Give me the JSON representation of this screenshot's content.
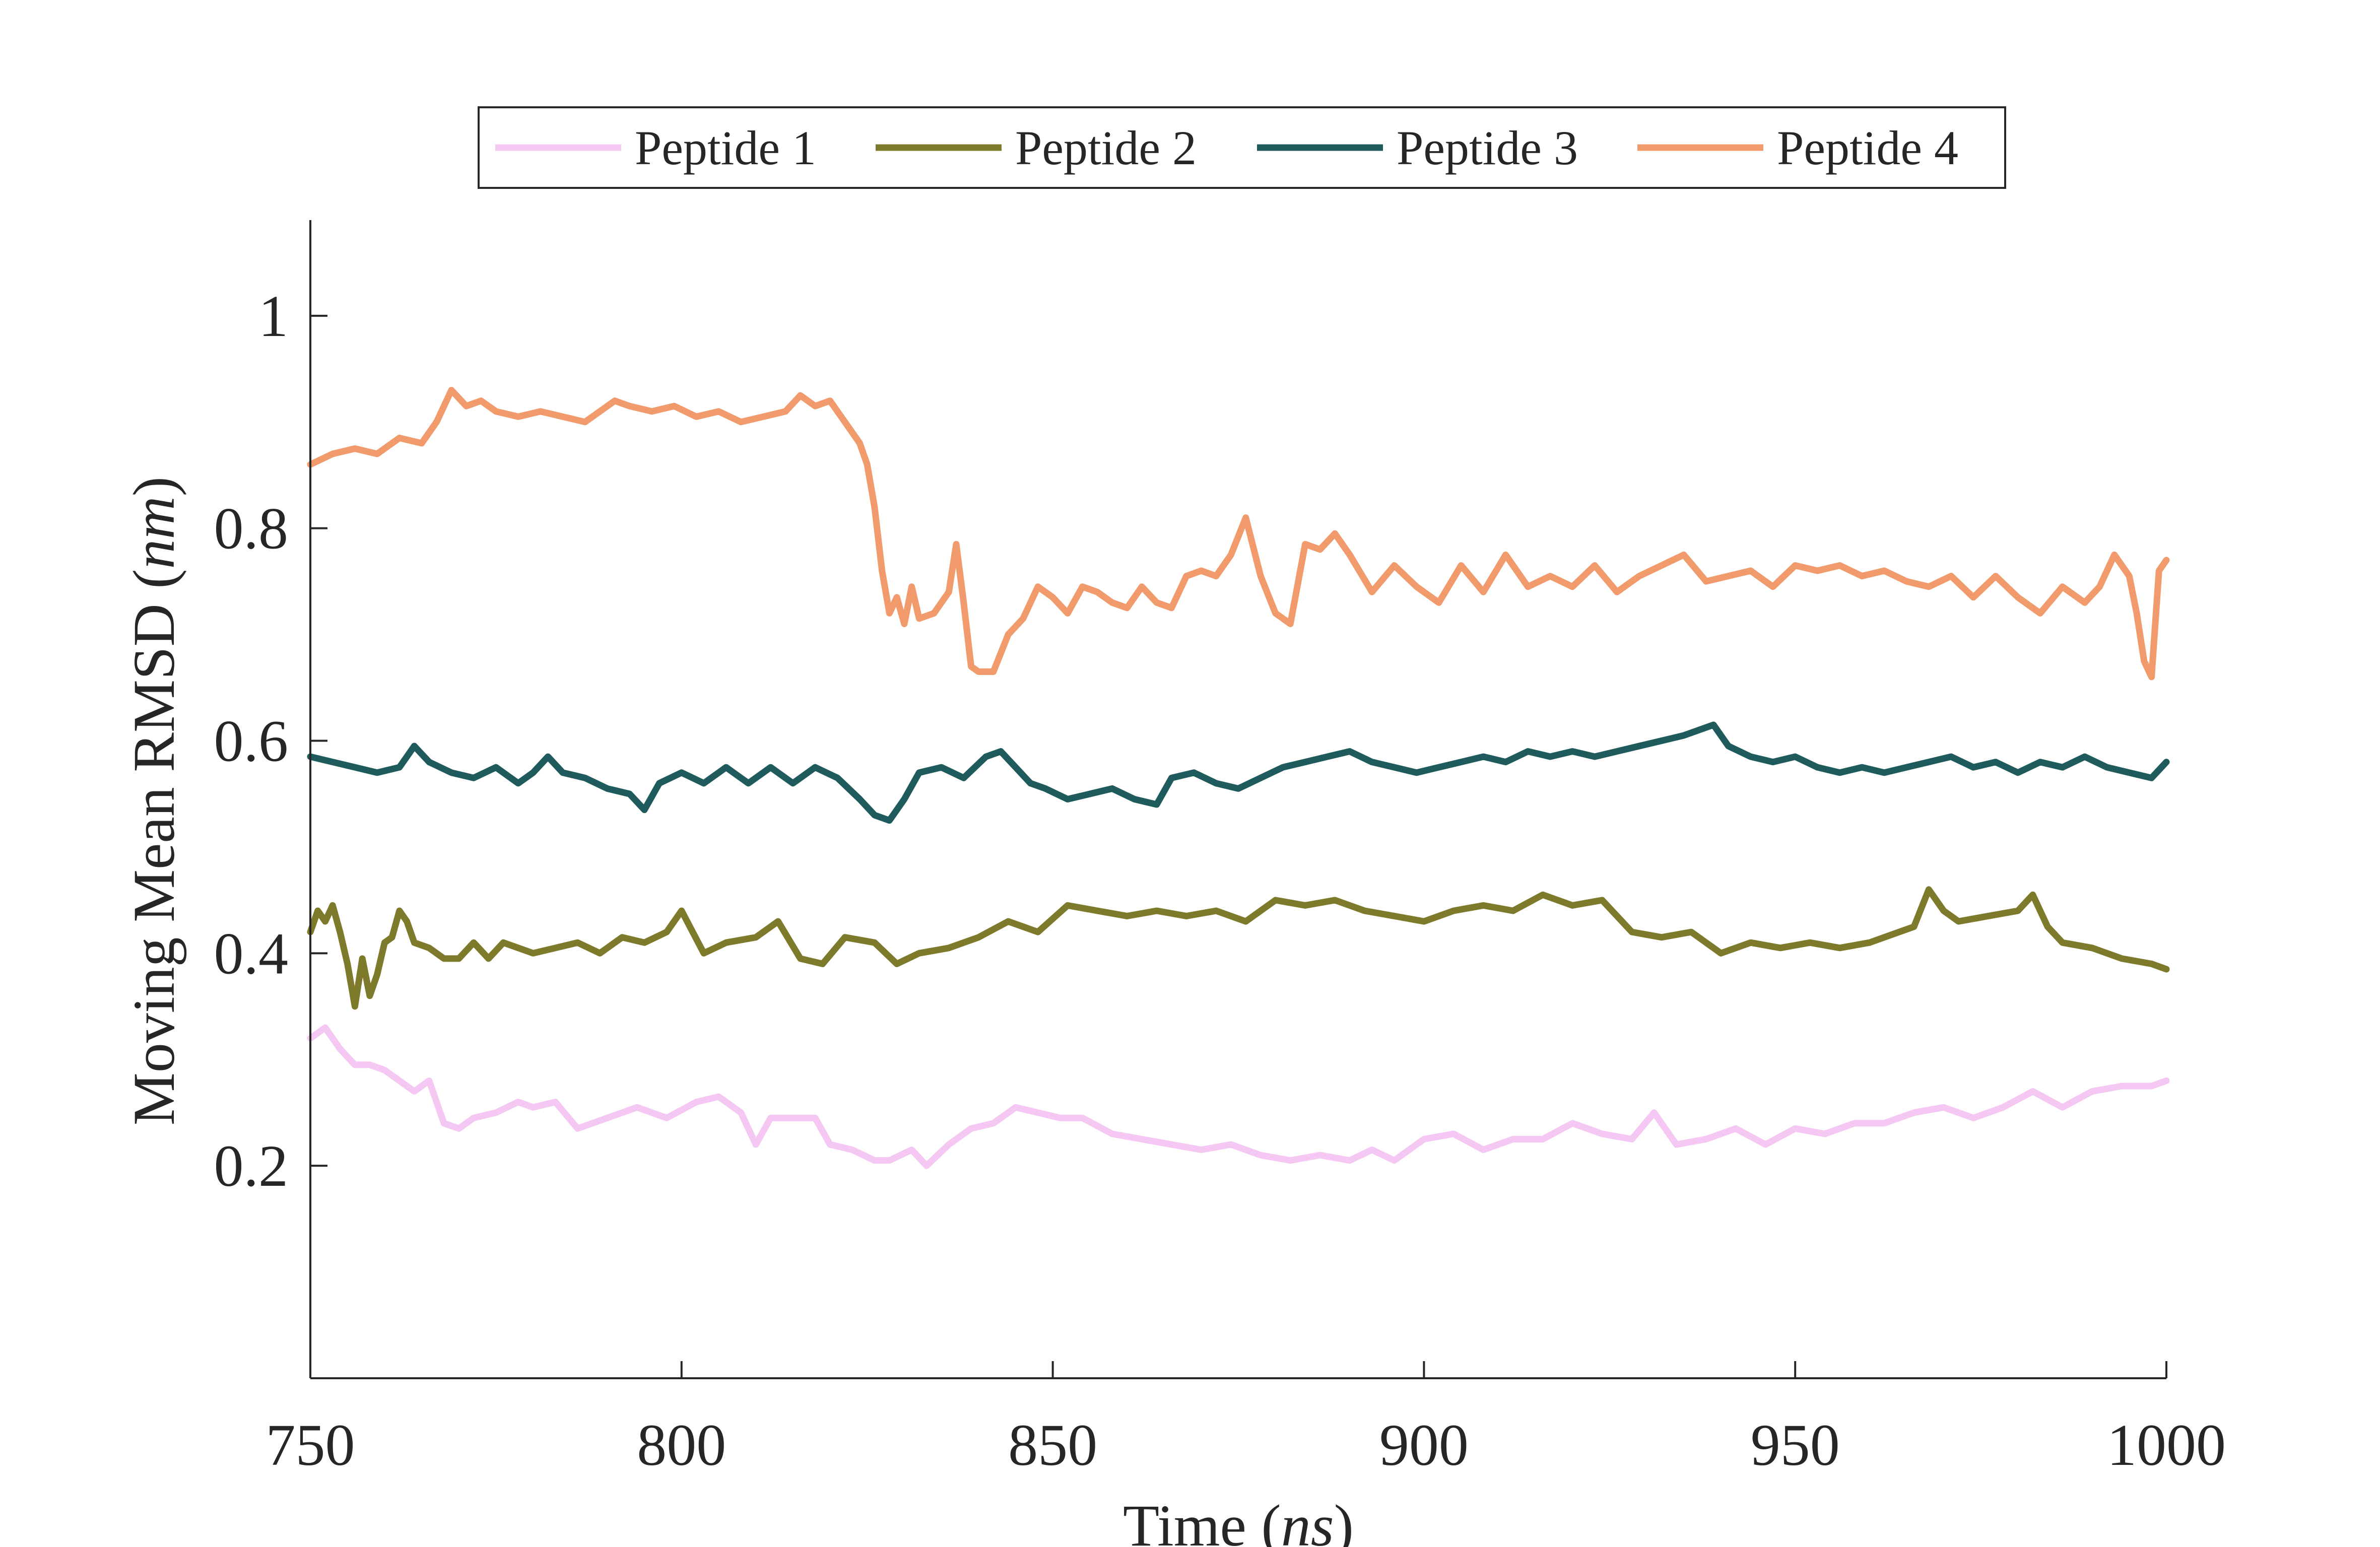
{
  "chart_data": {
    "type": "line",
    "title": "",
    "xlabel": "Time",
    "xlabel_unit": "ns",
    "ylabel": "Moving Mean RMSD",
    "ylabel_unit": "nm",
    "xlim": [
      750,
      1000
    ],
    "ylim": [
      0,
      1.09
    ],
    "xticks": [
      750,
      800,
      850,
      900,
      950,
      1000
    ],
    "xtick_labels": [
      "750",
      "800",
      "850",
      "900",
      "950",
      "1000"
    ],
    "yticks": [
      0.2,
      0.4,
      0.6,
      0.8,
      1
    ],
    "ytick_labels": [
      "0.2",
      "0.4",
      "0.6",
      "0.8",
      "1"
    ],
    "grid": false,
    "legend_position": "top-center, horizontal, boxed",
    "series": [
      {
        "name": "Peptide 1",
        "color": "#f5c7f3",
        "x": [
          750,
          752,
          754,
          756,
          758,
          760,
          762,
          764,
          766,
          768,
          770,
          772,
          775,
          778,
          780,
          783,
          786,
          790,
          794,
          798,
          802,
          805,
          808,
          810,
          812,
          815,
          818,
          820,
          823,
          826,
          828,
          831,
          833,
          836,
          839,
          842,
          845,
          848,
          851,
          854,
          858,
          862,
          866,
          870,
          874,
          878,
          882,
          886,
          890,
          893,
          896,
          900,
          904,
          908,
          912,
          916,
          920,
          924,
          928,
          931,
          934,
          938,
          942,
          946,
          950,
          954,
          958,
          962,
          966,
          970,
          974,
          978,
          982,
          986,
          990,
          994,
          998,
          1000
        ],
        "y": [
          0.32,
          0.33,
          0.31,
          0.295,
          0.295,
          0.29,
          0.28,
          0.27,
          0.28,
          0.24,
          0.235,
          0.245,
          0.25,
          0.26,
          0.255,
          0.26,
          0.235,
          0.245,
          0.255,
          0.245,
          0.26,
          0.265,
          0.25,
          0.22,
          0.245,
          0.245,
          0.245,
          0.22,
          0.215,
          0.205,
          0.205,
          0.215,
          0.2,
          0.22,
          0.235,
          0.24,
          0.255,
          0.25,
          0.245,
          0.245,
          0.23,
          0.225,
          0.22,
          0.215,
          0.22,
          0.21,
          0.205,
          0.21,
          0.205,
          0.215,
          0.205,
          0.225,
          0.23,
          0.215,
          0.225,
          0.225,
          0.24,
          0.23,
          0.225,
          0.25,
          0.22,
          0.225,
          0.235,
          0.22,
          0.235,
          0.23,
          0.24,
          0.24,
          0.25,
          0.255,
          0.245,
          0.255,
          0.27,
          0.255,
          0.27,
          0.275,
          0.275,
          0.28
        ]
      },
      {
        "name": "Peptide 2",
        "color": "#7d7a2b",
        "x": [
          750,
          751,
          752,
          753,
          754,
          755,
          756,
          757,
          758,
          759,
          760,
          761,
          762,
          763,
          764,
          766,
          768,
          770,
          772,
          774,
          776,
          778,
          780,
          783,
          786,
          789,
          792,
          795,
          798,
          800,
          803,
          806,
          810,
          813,
          816,
          819,
          822,
          826,
          829,
          832,
          836,
          840,
          844,
          848,
          852,
          856,
          860,
          864,
          868,
          872,
          876,
          880,
          884,
          888,
          892,
          896,
          900,
          904,
          908,
          912,
          916,
          920,
          924,
          928,
          932,
          936,
          940,
          944,
          948,
          952,
          956,
          960,
          964,
          966,
          968,
          970,
          972,
          976,
          980,
          982,
          984,
          986,
          990,
          994,
          998,
          1000
        ],
        "y": [
          0.42,
          0.44,
          0.43,
          0.445,
          0.42,
          0.39,
          0.35,
          0.395,
          0.36,
          0.38,
          0.41,
          0.415,
          0.44,
          0.43,
          0.41,
          0.405,
          0.395,
          0.395,
          0.41,
          0.395,
          0.41,
          0.405,
          0.4,
          0.405,
          0.41,
          0.4,
          0.415,
          0.41,
          0.42,
          0.44,
          0.4,
          0.41,
          0.415,
          0.43,
          0.395,
          0.39,
          0.415,
          0.41,
          0.39,
          0.4,
          0.405,
          0.415,
          0.43,
          0.42,
          0.445,
          0.44,
          0.435,
          0.44,
          0.435,
          0.44,
          0.43,
          0.45,
          0.445,
          0.45,
          0.44,
          0.435,
          0.43,
          0.44,
          0.445,
          0.44,
          0.455,
          0.445,
          0.45,
          0.42,
          0.415,
          0.42,
          0.4,
          0.41,
          0.405,
          0.41,
          0.405,
          0.41,
          0.42,
          0.425,
          0.46,
          0.44,
          0.43,
          0.435,
          0.44,
          0.455,
          0.425,
          0.41,
          0.405,
          0.395,
          0.39,
          0.385
        ]
      },
      {
        "name": "Peptide 3",
        "color": "#1f5b5c",
        "x": [
          750,
          753,
          756,
          759,
          762,
          764,
          766,
          769,
          772,
          775,
          778,
          780,
          782,
          784,
          787,
          790,
          793,
          795,
          797,
          800,
          803,
          806,
          809,
          812,
          815,
          818,
          821,
          824,
          826,
          828,
          830,
          832,
          835,
          838,
          841,
          843,
          845,
          847,
          849,
          852,
          855,
          858,
          861,
          864,
          866,
          869,
          872,
          875,
          878,
          881,
          884,
          887,
          890,
          893,
          896,
          899,
          902,
          905,
          908,
          911,
          914,
          917,
          920,
          923,
          926,
          929,
          932,
          935,
          937,
          939,
          941,
          944,
          947,
          950,
          953,
          956,
          959,
          962,
          965,
          968,
          971,
          974,
          977,
          980,
          983,
          986,
          989,
          992,
          995,
          998,
          1000
        ],
        "y": [
          0.585,
          0.58,
          0.575,
          0.57,
          0.575,
          0.595,
          0.58,
          0.57,
          0.565,
          0.575,
          0.56,
          0.57,
          0.585,
          0.57,
          0.565,
          0.555,
          0.55,
          0.535,
          0.56,
          0.57,
          0.56,
          0.575,
          0.56,
          0.575,
          0.56,
          0.575,
          0.565,
          0.545,
          0.53,
          0.525,
          0.545,
          0.57,
          0.575,
          0.565,
          0.585,
          0.59,
          0.575,
          0.56,
          0.555,
          0.545,
          0.55,
          0.555,
          0.545,
          0.54,
          0.565,
          0.57,
          0.56,
          0.555,
          0.565,
          0.575,
          0.58,
          0.585,
          0.59,
          0.58,
          0.575,
          0.57,
          0.575,
          0.58,
          0.585,
          0.58,
          0.59,
          0.585,
          0.59,
          0.585,
          0.59,
          0.595,
          0.6,
          0.605,
          0.61,
          0.615,
          0.595,
          0.585,
          0.58,
          0.585,
          0.575,
          0.57,
          0.575,
          0.57,
          0.575,
          0.58,
          0.585,
          0.575,
          0.58,
          0.57,
          0.58,
          0.575,
          0.585,
          0.575,
          0.57,
          0.565,
          0.58
        ]
      },
      {
        "name": "Peptide 4",
        "color": "#f19a6c",
        "x": [
          750,
          753,
          756,
          759,
          762,
          765,
          767,
          769,
          771,
          773,
          775,
          778,
          781,
          784,
          787,
          789,
          791,
          793,
          796,
          799,
          802,
          805,
          808,
          811,
          814,
          816,
          818,
          820,
          822,
          824,
          825,
          826,
          827,
          828,
          829,
          830,
          831,
          832,
          834,
          836,
          837,
          838,
          839,
          840,
          842,
          844,
          846,
          848,
          850,
          852,
          854,
          856,
          858,
          860,
          862,
          864,
          866,
          868,
          870,
          872,
          874,
          876,
          878,
          880,
          882,
          884,
          886,
          888,
          890,
          893,
          896,
          899,
          902,
          905,
          908,
          911,
          914,
          917,
          920,
          923,
          926,
          929,
          932,
          935,
          938,
          941,
          944,
          947,
          950,
          953,
          956,
          959,
          962,
          965,
          968,
          971,
          974,
          977,
          980,
          983,
          986,
          989,
          991,
          993,
          995,
          996,
          997,
          998,
          999,
          1000
        ],
        "y": [
          0.86,
          0.87,
          0.875,
          0.87,
          0.885,
          0.88,
          0.9,
          0.93,
          0.915,
          0.92,
          0.91,
          0.905,
          0.91,
          0.905,
          0.9,
          0.91,
          0.92,
          0.915,
          0.91,
          0.915,
          0.905,
          0.91,
          0.9,
          0.905,
          0.91,
          0.925,
          0.915,
          0.92,
          0.9,
          0.88,
          0.86,
          0.82,
          0.76,
          0.72,
          0.735,
          0.71,
          0.745,
          0.715,
          0.72,
          0.74,
          0.785,
          0.73,
          0.67,
          0.665,
          0.665,
          0.7,
          0.715,
          0.745,
          0.735,
          0.72,
          0.745,
          0.74,
          0.73,
          0.725,
          0.745,
          0.73,
          0.725,
          0.755,
          0.76,
          0.755,
          0.775,
          0.81,
          0.755,
          0.72,
          0.71,
          0.785,
          0.78,
          0.795,
          0.775,
          0.74,
          0.765,
          0.745,
          0.73,
          0.765,
          0.74,
          0.775,
          0.745,
          0.755,
          0.745,
          0.765,
          0.74,
          0.755,
          0.765,
          0.775,
          0.75,
          0.755,
          0.76,
          0.745,
          0.765,
          0.76,
          0.765,
          0.755,
          0.76,
          0.75,
          0.745,
          0.755,
          0.735,
          0.755,
          0.735,
          0.72,
          0.745,
          0.73,
          0.745,
          0.775,
          0.755,
          0.72,
          0.675,
          0.66,
          0.76,
          0.77
        ]
      }
    ]
  }
}
